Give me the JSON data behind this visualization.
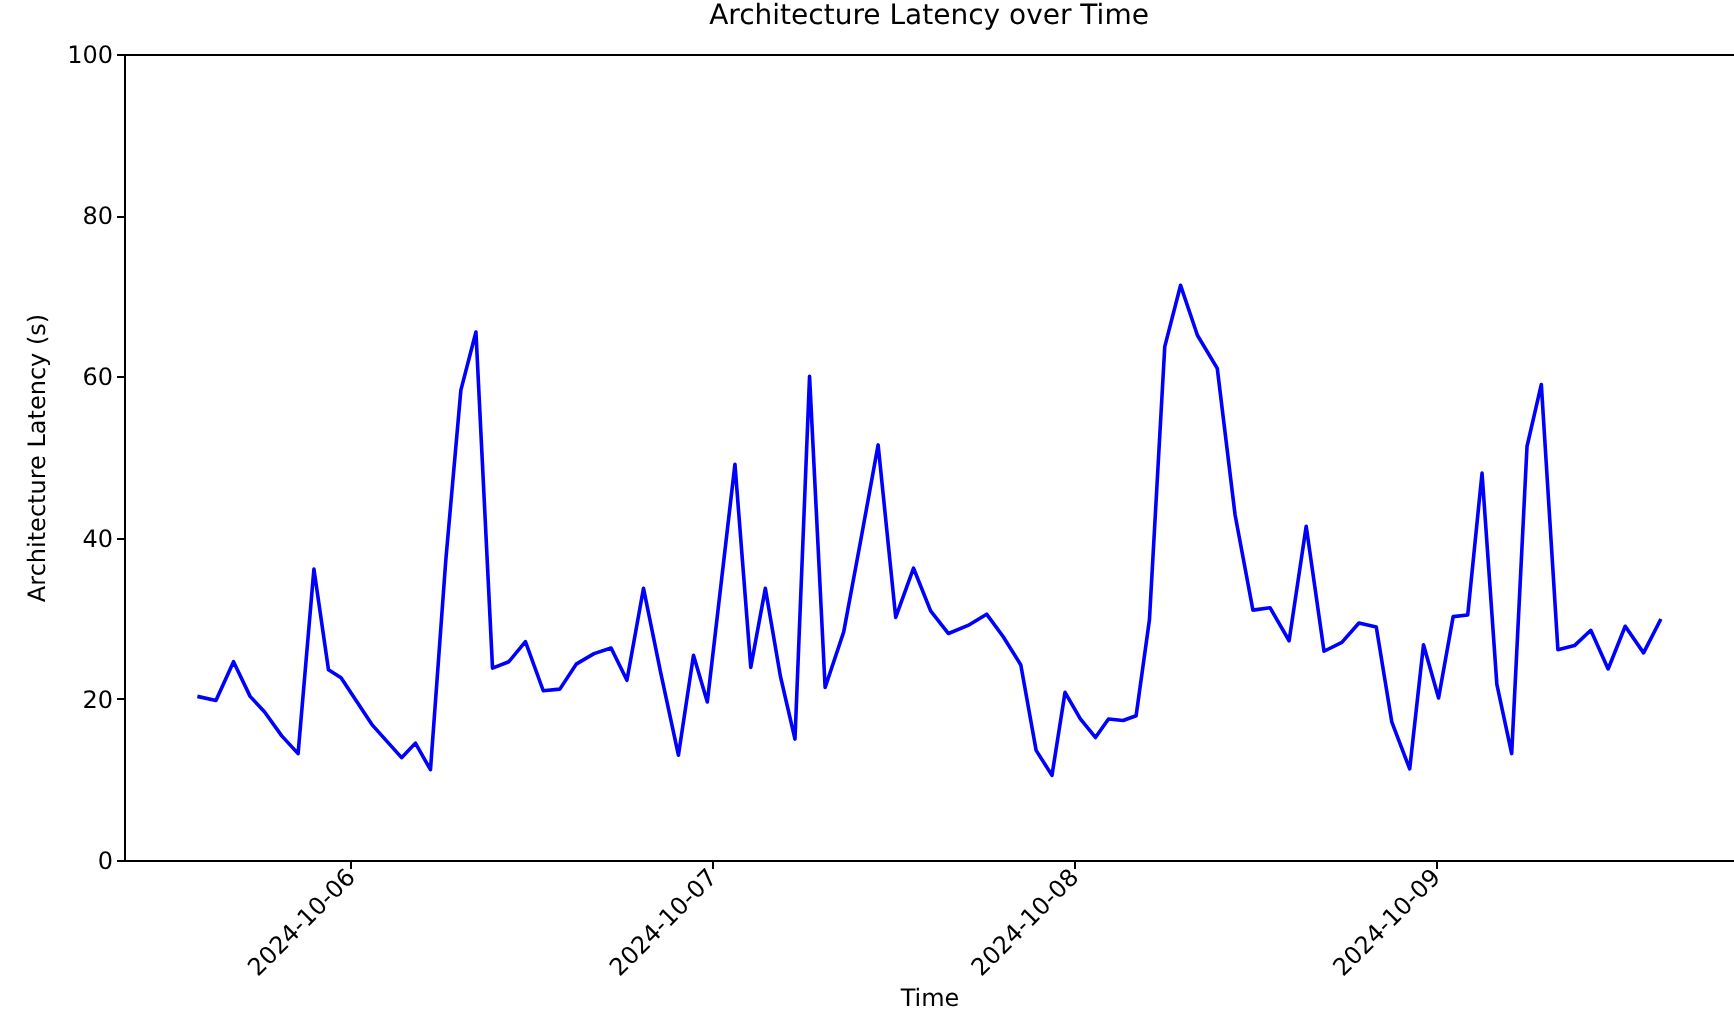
{
  "chart_data": {
    "type": "line",
    "title": "Architecture Latency over Time",
    "xlabel": "Time",
    "ylabel": "Architecture Latency (s)",
    "x": [
      "2024-10-05T13:53",
      "2024-10-05T15:07",
      "2024-10-05T16:17",
      "2024-10-05T17:23",
      "2024-10-05T18:20",
      "2024-10-05T19:29",
      "2024-10-05T20:34",
      "2024-10-05T21:37",
      "2024-10-05T22:35",
      "2024-10-05T23:25",
      "2024-10-06T01:28",
      "2024-10-06T03:26",
      "2024-10-06T04:21",
      "2024-10-06T05:21",
      "2024-10-06T06:22",
      "2024-10-06T07:22",
      "2024-10-06T08:22",
      "2024-10-06T09:28",
      "2024-10-06T10:33",
      "2024-10-06T11:39",
      "2024-10-06T12:50",
      "2024-10-06T13:56",
      "2024-10-06T15:01",
      "2024-10-06T16:12",
      "2024-10-06T17:20",
      "2024-10-06T18:23",
      "2024-10-06T19:29",
      "2024-10-06T20:37",
      "2024-10-06T21:48",
      "2024-10-06T22:48",
      "2024-10-06T23:43",
      "2024-10-07T00:38",
      "2024-10-07T01:33",
      "2024-10-07T02:36",
      "2024-10-07T03:34",
      "2024-10-07T04:34",
      "2024-10-07T05:32",
      "2024-10-07T06:30",
      "2024-10-07T07:32",
      "2024-10-07T08:46",
      "2024-10-07T09:54",
      "2024-10-07T11:03",
      "2024-10-07T12:13",
      "2024-10-07T13:24",
      "2024-10-07T14:32",
      "2024-10-07T15:43",
      "2024-10-07T17:01",
      "2024-10-07T18:15",
      "2024-10-07T19:21",
      "2024-10-07T20:31",
      "2024-10-07T21:32",
      "2024-10-07T22:35",
      "2024-10-07T23:27",
      "2024-10-08T00:28",
      "2024-10-08T01:28",
      "2024-10-08T02:20",
      "2024-10-08T03:18",
      "2024-10-08T04:10",
      "2024-10-08T05:03",
      "2024-10-08T06:04",
      "2024-10-08T07:07",
      "2024-10-08T08:14",
      "2024-10-08T09:33",
      "2024-10-08T10:44",
      "2024-10-08T11:55",
      "2024-10-08T13:03",
      "2024-10-08T14:19",
      "2024-10-08T15:27",
      "2024-10-08T16:38",
      "2024-10-08T17:49",
      "2024-10-08T18:57",
      "2024-10-08T20:06",
      "2024-10-08T21:08",
      "2024-10-08T22:19",
      "2024-10-08T23:14",
      "2024-10-09T00:14",
      "2024-10-09T01:12",
      "2024-10-09T02:10",
      "2024-10-09T03:07",
      "2024-10-09T04:06",
      "2024-10-09T05:05",
      "2024-10-09T06:06",
      "2024-10-09T07:03",
      "2024-10-09T08:09",
      "2024-10-09T09:15",
      "2024-10-09T10:20",
      "2024-10-09T11:29",
      "2024-10-09T12:37",
      "2024-10-09T13:50",
      "2024-10-09T14:59"
    ],
    "series": [
      {
        "color": "#0000ff",
        "values": [
          20.3,
          19.8,
          24.6,
          20.3,
          18.4,
          15.4,
          13.2,
          36.1,
          23.6,
          22.6,
          16.8,
          12.7,
          14.5,
          11.2,
          37.2,
          58.3,
          65.5,
          23.8,
          24.6,
          27.1,
          21.0,
          21.2,
          24.3,
          25.6,
          26.3,
          22.3,
          33.7,
          23.3,
          13.0,
          25.4,
          19.6,
          34.3,
          49.1,
          23.9,
          33.7,
          22.8,
          15.0,
          60.0,
          21.4,
          28.3,
          39.7,
          51.5,
          30.1,
          36.2,
          30.9,
          28.1,
          29.1,
          30.5,
          27.7,
          24.2,
          13.6,
          10.5,
          20.8,
          17.5,
          15.2,
          17.5,
          17.3,
          17.9,
          29.8,
          63.7,
          71.3,
          65.1,
          61.0,
          42.8,
          31.0,
          31.3,
          27.2,
          41.4,
          25.9,
          27.0,
          29.4,
          28.9,
          17.1,
          11.3,
          26.7,
          20.1,
          30.2,
          30.4,
          48.0,
          21.8,
          13.2,
          51.3,
          59.0,
          26.1,
          26.6,
          28.5,
          23.7,
          29.0,
          25.7,
          29.9
        ]
      }
    ],
    "xlim": [
      "2024-10-05T09:01",
      "2024-10-09T19:50"
    ],
    "xticks": [
      "2024-10-06",
      "2024-10-07",
      "2024-10-08",
      "2024-10-09"
    ],
    "ylim": [
      0,
      100
    ],
    "yticks": [
      0,
      20,
      40,
      60,
      80,
      100
    ],
    "grid": false,
    "marker": "none",
    "line_style": "solid"
  }
}
